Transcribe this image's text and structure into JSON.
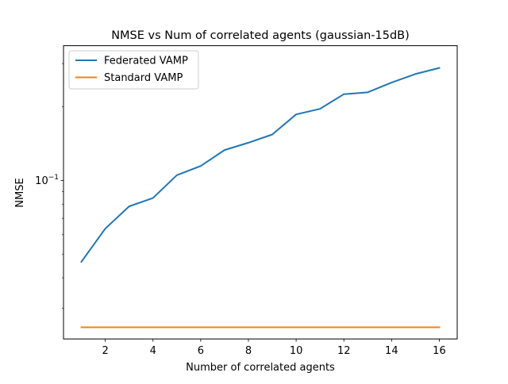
{
  "chart_data": {
    "type": "line",
    "title": "NMSE vs Num of correlated agents (gaussian-15dB)",
    "xlabel": "Number of correlated agents",
    "ylabel": "NMSE",
    "yscale": "log",
    "xlim": [
      0.25,
      16.75
    ],
    "ylim": [
      0.0225,
      0.355
    ],
    "x_ticks": [
      2,
      4,
      6,
      8,
      10,
      12,
      14,
      16
    ],
    "x_tick_labels": [
      "2",
      "4",
      "6",
      "8",
      "10",
      "12",
      "14",
      "16"
    ],
    "y_major_ticks": [
      0.1
    ],
    "y_major_tick_labels": [
      {
        "base": "10",
        "exp": "−1"
      }
    ],
    "y_minor_ticks": [
      0.03,
      0.04,
      0.05,
      0.06,
      0.07,
      0.08,
      0.09,
      0.2,
      0.3
    ],
    "grid": false,
    "legend_position": "upper-left",
    "x": [
      1,
      2,
      3,
      4,
      5,
      6,
      7,
      8,
      9,
      10,
      11,
      12,
      13,
      14,
      15,
      16
    ],
    "series": [
      {
        "name": "Federated VAMP",
        "color": "#1f77b4",
        "values": [
          0.0465,
          0.0635,
          0.0783,
          0.0847,
          0.105,
          0.1145,
          0.133,
          0.1425,
          0.154,
          0.186,
          0.196,
          0.225,
          0.229,
          0.251,
          0.272,
          0.288
        ]
      },
      {
        "name": "Standard VAMP",
        "color": "#ff7f0e",
        "values": [
          0.0251,
          0.0251,
          0.0251,
          0.0251,
          0.0251,
          0.0251,
          0.0251,
          0.0251,
          0.0251,
          0.0251,
          0.0251,
          0.0251,
          0.0251,
          0.0251,
          0.0251,
          0.0251
        ]
      }
    ]
  }
}
